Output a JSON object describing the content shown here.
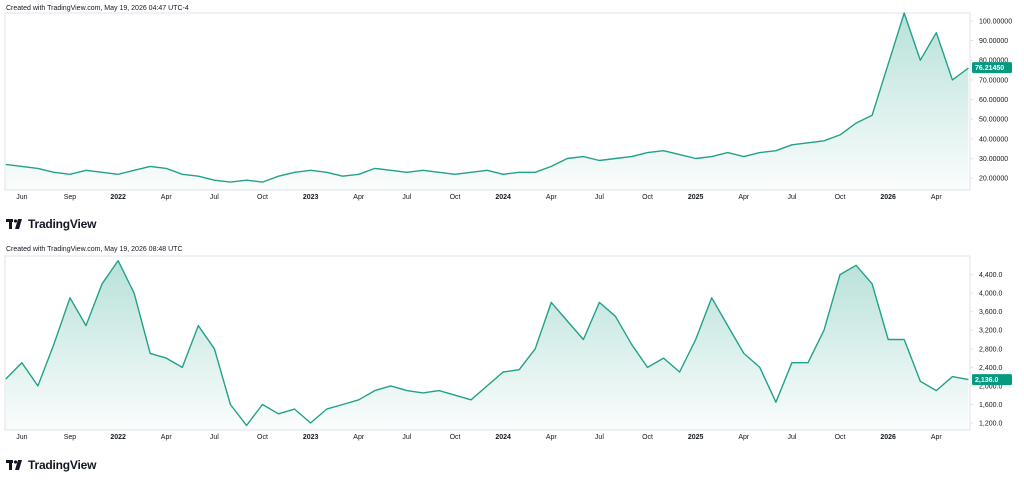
{
  "top_panel": {
    "caption": "Created with TradingView.com, May 19, 2026 04:47 UTC-4",
    "brand": "TradingView",
    "current_price_label": "76.21450"
  },
  "bottom_panel": {
    "caption": "Created with TradingView.com, May 19, 2026 08:48 UTC",
    "brand": "TradingView",
    "current_price_label": "2,136.0"
  },
  "colors": {
    "line": "#22a18a",
    "fill_top": "#22a18a",
    "price_label_bg": "#089981",
    "axis_border": "#e0e3eb"
  },
  "chart_data": [
    {
      "type": "area",
      "x_tick_labels": [
        "Jun",
        "Sep",
        "2022",
        "Apr",
        "Jul",
        "Oct",
        "2023",
        "Apr",
        "Jul",
        "Oct",
        "2024",
        "Apr",
        "Jul",
        "Oct",
        "2025",
        "Apr",
        "Jul",
        "Oct",
        "2026",
        "Apr"
      ],
      "x_tick_bold": [
        false,
        false,
        true,
        false,
        false,
        false,
        true,
        false,
        false,
        false,
        true,
        false,
        false,
        false,
        true,
        false,
        false,
        false,
        true,
        false
      ],
      "y_tick_labels": [
        "100.00000",
        "90.00000",
        "80.00000",
        "70.00000",
        "60.00000",
        "50.00000",
        "40.00000",
        "30.00000",
        "20.00000"
      ],
      "y_ticks": [
        100,
        90,
        80,
        70,
        60,
        50,
        40,
        30,
        20
      ],
      "ylim": [
        14,
        104
      ],
      "last_value": 76.2145,
      "x": [
        "2021-05",
        "2021-06",
        "2021-07",
        "2021-08",
        "2021-09",
        "2021-10",
        "2021-11",
        "2021-12",
        "2022-01",
        "2022-02",
        "2022-03",
        "2022-04",
        "2022-05",
        "2022-06",
        "2022-07",
        "2022-08",
        "2022-09",
        "2022-10",
        "2022-11",
        "2022-12",
        "2023-01",
        "2023-02",
        "2023-03",
        "2023-04",
        "2023-05",
        "2023-06",
        "2023-07",
        "2023-08",
        "2023-09",
        "2023-10",
        "2023-11",
        "2023-12",
        "2024-01",
        "2024-02",
        "2024-03",
        "2024-04",
        "2024-05",
        "2024-06",
        "2024-07",
        "2024-08",
        "2024-09",
        "2024-10",
        "2024-11",
        "2024-12",
        "2025-01",
        "2025-02",
        "2025-03",
        "2025-04",
        "2025-05",
        "2025-06",
        "2025-07",
        "2025-08",
        "2025-09",
        "2025-10",
        "2025-11",
        "2025-12",
        "2026-01",
        "2026-02",
        "2026-03",
        "2026-04",
        "2026-05"
      ],
      "values": [
        27,
        26,
        25,
        23,
        22,
        24,
        23,
        22,
        24,
        26,
        25,
        22,
        21,
        19,
        18,
        19,
        18,
        21,
        23,
        24,
        23,
        21,
        22,
        25,
        24,
        23,
        24,
        23,
        22,
        23,
        24,
        22,
        23,
        23,
        26,
        30,
        31,
        29,
        30,
        31,
        33,
        34,
        32,
        30,
        31,
        33,
        31,
        33,
        34,
        37,
        38,
        39,
        42,
        48,
        52,
        78,
        104,
        80,
        94,
        70,
        76
      ]
    },
    {
      "type": "area",
      "x_tick_labels": [
        "Jun",
        "Sep",
        "2022",
        "Apr",
        "Jul",
        "Oct",
        "2023",
        "Apr",
        "Jul",
        "Oct",
        "2024",
        "Apr",
        "Jul",
        "Oct",
        "2025",
        "Apr",
        "Jul",
        "Oct",
        "2026",
        "Apr"
      ],
      "x_tick_bold": [
        false,
        false,
        true,
        false,
        false,
        false,
        true,
        false,
        false,
        false,
        true,
        false,
        false,
        false,
        true,
        false,
        false,
        false,
        true,
        false
      ],
      "y_tick_labels": [
        "4,400.0",
        "4,000.0",
        "3,600.0",
        "3,200.0",
        "2,800.0",
        "2,400.0",
        "2,000.0",
        "1,600.0",
        "1,200.0"
      ],
      "y_ticks": [
        4400,
        4000,
        3600,
        3200,
        2800,
        2400,
        2000,
        1600,
        1200
      ],
      "ylim": [
        1050,
        4800
      ],
      "last_value": 2136.0,
      "x": [
        "2021-05",
        "2021-06",
        "2021-07",
        "2021-08",
        "2021-09",
        "2021-10",
        "2021-11",
        "2021-12",
        "2022-01",
        "2022-02",
        "2022-03",
        "2022-04",
        "2022-05",
        "2022-06",
        "2022-07",
        "2022-08",
        "2022-09",
        "2022-10",
        "2022-11",
        "2022-12",
        "2023-01",
        "2023-02",
        "2023-03",
        "2023-04",
        "2023-05",
        "2023-06",
        "2023-07",
        "2023-08",
        "2023-09",
        "2023-10",
        "2023-11",
        "2023-12",
        "2024-01",
        "2024-02",
        "2024-03",
        "2024-04",
        "2024-05",
        "2024-06",
        "2024-07",
        "2024-08",
        "2024-09",
        "2024-10",
        "2024-11",
        "2024-12",
        "2025-01",
        "2025-02",
        "2025-03",
        "2025-04",
        "2025-05",
        "2025-06",
        "2025-07",
        "2025-08",
        "2025-09",
        "2025-10",
        "2025-11",
        "2025-12",
        "2026-01",
        "2026-02",
        "2026-03",
        "2026-04",
        "2026-05"
      ],
      "values": [
        2150,
        2500,
        2000,
        2900,
        3900,
        3300,
        4200,
        4700,
        4000,
        2700,
        2600,
        2400,
        3300,
        2800,
        1600,
        1150,
        1600,
        1400,
        1500,
        1200,
        1500,
        1600,
        1700,
        1900,
        2000,
        1900,
        1850,
        1900,
        1800,
        1700,
        2000,
        2300,
        2350,
        2800,
        3800,
        3400,
        3000,
        3800,
        3500,
        2900,
        2400,
        2600,
        2300,
        3000,
        3900,
        3300,
        2700,
        2400,
        1650,
        2500,
        2500,
        3200,
        4400,
        4600,
        4200,
        3000,
        3000,
        2100,
        1900,
        2200,
        2136
      ]
    }
  ]
}
